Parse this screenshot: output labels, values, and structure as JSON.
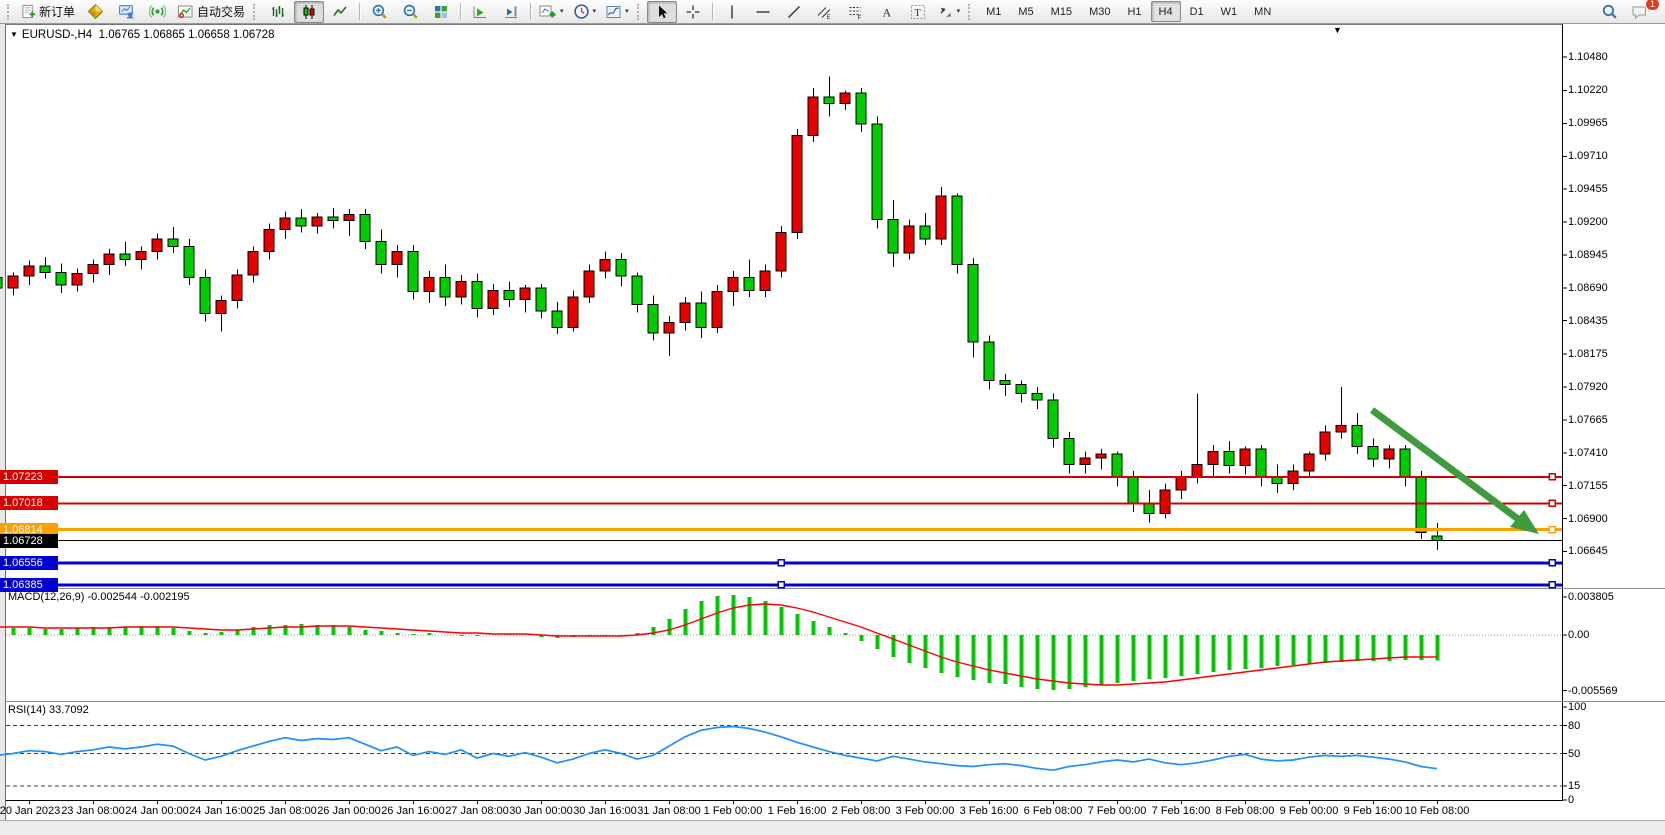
{
  "toolbar": {
    "new_order_label": "新订单",
    "auto_trading_label": "自动交易",
    "timeframes": [
      "M1",
      "M5",
      "M15",
      "M30",
      "H1",
      "H4",
      "D1",
      "W1",
      "MN"
    ],
    "active_timeframe": "H4",
    "notification_count": "1"
  },
  "icons": {
    "dropdown_caret": "▾",
    "symbol_dropdown": "▼",
    "chart_shift_marker": "▼"
  },
  "chart": {
    "symbol_title": "EURUSD-,H4",
    "ohlc_text": "1.06765 1.06865 1.06658 1.06728"
  },
  "chart_data": {
    "type": "candlestick",
    "symbol": "EURUSD",
    "timeframe": "H4",
    "candle_up_color": "#e60000",
    "candle_down_color": "#00cc00",
    "wick_color": "#000000",
    "arrow_color": "#3f9b3f",
    "price_axis_ticks": [
      "1.10480",
      "1.10220",
      "1.09965",
      "1.09710",
      "1.09455",
      "1.09200",
      "1.08945",
      "1.08690",
      "1.08435",
      "1.08175",
      "1.07920",
      "1.07665",
      "1.07410",
      "1.07155",
      "1.06900",
      "1.06645"
    ],
    "levels": [
      {
        "price": 1.07223,
        "label": "1.07223",
        "color": "#d40000",
        "width": 2,
        "left_handle": false
      },
      {
        "price": 1.07018,
        "label": "1.07018",
        "color": "#d40000",
        "width": 2,
        "left_handle": false
      },
      {
        "price": 1.06814,
        "label": "1.06814",
        "color": "#ffa000",
        "width": 3,
        "left_handle": false
      },
      {
        "price": 1.06556,
        "label": "1.06556",
        "color": "#0000d0",
        "width": 3,
        "left_handle": true
      },
      {
        "price": 1.06385,
        "label": "1.06385",
        "color": "#0000d0",
        "width": 3,
        "left_handle": true
      }
    ],
    "current_price": {
      "price": 1.06728,
      "label": "1.06728",
      "color": "#000000"
    },
    "time_labels": [
      "20 Jan 2023",
      "23 Jan 08:00",
      "24 Jan 00:00",
      "24 Jan 16:00",
      "25 Jan 08:00",
      "26 Jan 00:00",
      "26 Jan 16:00",
      "27 Jan 08:00",
      "30 Jan 00:00",
      "30 Jan 16:00",
      "31 Jan 08:00",
      "1 Feb 00:00",
      "1 Feb 16:00",
      "2 Feb 08:00",
      "3 Feb 00:00",
      "3 Feb 16:00",
      "6 Feb 08:00",
      "7 Feb 00:00",
      "7 Feb 16:00",
      "8 Feb 08:00",
      "9 Feb 00:00",
      "9 Feb 16:00",
      "10 Feb 08:00"
    ],
    "time_label_first_bar": 2,
    "time_label_bar_step": 4,
    "candles": [
      [
        1.0877,
        1.0883,
        1.0861,
        1.0869
      ],
      [
        1.0869,
        1.0881,
        1.0863,
        1.0878
      ],
      [
        1.0878,
        1.089,
        1.0871,
        1.0886
      ],
      [
        1.0886,
        1.0893,
        1.0876,
        1.0881
      ],
      [
        1.0881,
        1.0888,
        1.0865,
        1.0871
      ],
      [
        1.0871,
        1.0884,
        1.0866,
        1.088
      ],
      [
        1.088,
        1.0891,
        1.0873,
        1.0887
      ],
      [
        1.0887,
        1.0899,
        1.0879,
        1.0895
      ],
      [
        1.0895,
        1.0905,
        1.0886,
        1.0891
      ],
      [
        1.0891,
        1.0901,
        1.0883,
        1.0897
      ],
      [
        1.0897,
        1.0911,
        1.0891,
        1.0907
      ],
      [
        1.0907,
        1.0916,
        1.0896,
        1.0901
      ],
      [
        1.0901,
        1.0907,
        1.0871,
        1.0877
      ],
      [
        1.0877,
        1.0883,
        1.0843,
        1.0849
      ],
      [
        1.0849,
        1.0863,
        1.0835,
        1.0859
      ],
      [
        1.0859,
        1.0883,
        1.0853,
        1.0879
      ],
      [
        1.0879,
        1.0901,
        1.0873,
        1.0897
      ],
      [
        1.0897,
        1.0919,
        1.0891,
        1.0914
      ],
      [
        1.0914,
        1.0928,
        1.0907,
        1.0923
      ],
      [
        1.0923,
        1.093,
        1.0912,
        1.0917
      ],
      [
        1.0917,
        1.0927,
        1.0911,
        1.0924
      ],
      [
        1.0924,
        1.0931,
        1.0915,
        1.0921
      ],
      [
        1.0921,
        1.093,
        1.0909,
        1.0926
      ],
      [
        1.0926,
        1.093,
        1.0899,
        1.0905
      ],
      [
        1.0905,
        1.0914,
        1.088,
        1.0887
      ],
      [
        1.0887,
        1.0902,
        1.0877,
        1.0897
      ],
      [
        1.0897,
        1.0902,
        1.086,
        1.0866
      ],
      [
        1.0866,
        1.0882,
        1.0857,
        1.0877
      ],
      [
        1.0877,
        1.0887,
        1.0855,
        1.0862
      ],
      [
        1.0862,
        1.0879,
        1.0856,
        1.0874
      ],
      [
        1.0874,
        1.088,
        1.0846,
        1.0853
      ],
      [
        1.0853,
        1.0872,
        1.0848,
        1.0867
      ],
      [
        1.0867,
        1.0874,
        1.0854,
        1.086
      ],
      [
        1.086,
        1.0871,
        1.085,
        1.0869
      ],
      [
        1.0869,
        1.0872,
        1.0845,
        1.0851
      ],
      [
        1.0851,
        1.0858,
        1.0833,
        1.0838
      ],
      [
        1.0838,
        1.0867,
        1.0835,
        1.0862
      ],
      [
        1.0862,
        1.0887,
        1.0857,
        1.0882
      ],
      [
        1.0882,
        1.0897,
        1.0876,
        1.0891
      ],
      [
        1.0891,
        1.0896,
        1.087,
        1.0878
      ],
      [
        1.0878,
        1.0881,
        1.085,
        1.0856
      ],
      [
        1.0856,
        1.0863,
        1.0828,
        1.0834
      ],
      [
        1.0834,
        1.0847,
        1.0816,
        1.0842
      ],
      [
        1.0842,
        1.0862,
        1.0836,
        1.0857
      ],
      [
        1.0857,
        1.0866,
        1.083,
        1.0838
      ],
      [
        1.0838,
        1.0871,
        1.0834,
        1.0866
      ],
      [
        1.0866,
        1.0882,
        1.0855,
        1.0877
      ],
      [
        1.0877,
        1.0891,
        1.0862,
        1.0867
      ],
      [
        1.0867,
        1.0887,
        1.0862,
        1.0882
      ],
      [
        1.0882,
        1.0917,
        1.0877,
        1.0912
      ],
      [
        1.0912,
        1.0992,
        1.0907,
        1.0987
      ],
      [
        1.0987,
        1.1024,
        1.0982,
        1.1017
      ],
      [
        1.1017,
        1.1033,
        1.1002,
        1.1012
      ],
      [
        1.1012,
        1.1022,
        1.1007,
        1.102
      ],
      [
        1.102,
        1.1024,
        1.099,
        1.0996
      ],
      [
        1.0996,
        1.1002,
        1.0915,
        1.0922
      ],
      [
        1.0922,
        1.0937,
        1.0885,
        1.0896
      ],
      [
        1.0896,
        1.0922,
        1.0891,
        1.0917
      ],
      [
        1.0917,
        1.0927,
        1.0902,
        1.0907
      ],
      [
        1.0907,
        1.0947,
        1.0902,
        1.094
      ],
      [
        1.094,
        1.0942,
        1.088,
        1.0887
      ],
      [
        1.0887,
        1.0892,
        1.0815,
        1.0827
      ],
      [
        1.0827,
        1.0832,
        1.079,
        1.0797
      ],
      [
        1.0797,
        1.0802,
        1.0785,
        1.0794
      ],
      [
        1.0794,
        1.0797,
        1.078,
        1.0787
      ],
      [
        1.0787,
        1.0792,
        1.0775,
        1.0782
      ],
      [
        1.0782,
        1.0787,
        1.0745,
        1.0752
      ],
      [
        1.0752,
        1.0757,
        1.0725,
        1.0732
      ],
      [
        1.0732,
        1.0742,
        1.0725,
        1.0737
      ],
      [
        1.0737,
        1.0744,
        1.0728,
        1.074
      ],
      [
        1.074,
        1.0742,
        1.0715,
        1.0722
      ],
      [
        1.0722,
        1.0727,
        1.0695,
        1.0702
      ],
      [
        1.0702,
        1.0712,
        1.0687,
        1.0694
      ],
      [
        1.0694,
        1.0717,
        1.069,
        1.0712
      ],
      [
        1.0712,
        1.0727,
        1.0705,
        1.0722
      ],
      [
        1.0722,
        1.0787,
        1.0717,
        1.0732
      ],
      [
        1.0732,
        1.0747,
        1.0722,
        1.0742
      ],
      [
        1.0742,
        1.075,
        1.0725,
        1.0731
      ],
      [
        1.0731,
        1.0746,
        1.0724,
        1.0744
      ],
      [
        1.0744,
        1.0747,
        1.0715,
        1.0722
      ],
      [
        1.0722,
        1.0732,
        1.071,
        1.0717
      ],
      [
        1.0717,
        1.0732,
        1.0712,
        1.0727
      ],
      [
        1.0727,
        1.0742,
        1.0722,
        1.074
      ],
      [
        1.074,
        1.0762,
        1.0735,
        1.0757
      ],
      [
        1.0757,
        1.0792,
        1.0752,
        1.0762
      ],
      [
        1.0762,
        1.0772,
        1.074,
        1.0746
      ],
      [
        1.0746,
        1.0752,
        1.073,
        1.0736
      ],
      [
        1.0736,
        1.0747,
        1.0729,
        1.0744
      ],
      [
        1.0744,
        1.0747,
        1.0715,
        1.0722
      ],
      [
        1.0722,
        1.0727,
        1.0674,
        1.0679
      ],
      [
        1.06765,
        1.06865,
        1.06658,
        1.06728
      ]
    ],
    "macd": {
      "label": "MACD(12,26,9) -0.002544 -0.002195",
      "hist_color": "#00c800",
      "signal_color": "#ff0000",
      "ticks": [
        {
          "v": 0.003805,
          "label": "0.003805"
        },
        {
          "v": 0,
          "label": "0.00"
        },
        {
          "v": -0.005569,
          "label": "-0.005569"
        }
      ],
      "hist": [
        0.0006,
        0.0007,
        0.0007,
        0.0006,
        0.0006,
        0.0007,
        0.0008,
        0.0008,
        0.0008,
        0.0009,
        0.0009,
        0.0007,
        0.0004,
        0.0002,
        0.0003,
        0.0005,
        0.0008,
        0.001,
        0.001,
        0.0011,
        0.001,
        0.001,
        0.0008,
        0.0005,
        0.0004,
        0.0002,
        0.0001,
        0.0002,
        0.0,
        -0.0001,
        -0.0001,
        0.0,
        0.0001,
        0.0,
        -0.0002,
        -0.0003,
        -0.0002,
        -0.0001,
        -0.0001,
        -0.0001,
        0.0002,
        0.0008,
        0.0016,
        0.0026,
        0.0034,
        0.0039,
        0.004,
        0.0038,
        0.0034,
        0.0028,
        0.0021,
        0.0014,
        0.0008,
        0.0002,
        -0.0006,
        -0.0014,
        -0.0022,
        -0.0028,
        -0.0033,
        -0.0038,
        -0.0042,
        -0.0045,
        -0.0048,
        -0.0049,
        -0.0052,
        -0.0054,
        -0.0055,
        -0.0054,
        -0.0052,
        -0.005,
        -0.0048,
        -0.0046,
        -0.0044,
        -0.0043,
        -0.0041,
        -0.0039,
        -0.0037,
        -0.0035,
        -0.0034,
        -0.0033,
        -0.0031,
        -0.003,
        -0.0029,
        -0.0028,
        -0.0027,
        -0.0026,
        -0.0026,
        -0.0026,
        -0.0025,
        -0.0025,
        -0.002544
      ],
      "signal": [
        0.0008,
        0.0008,
        0.0008,
        0.0007,
        0.0007,
        0.0007,
        0.0007,
        0.0007,
        0.0008,
        0.0008,
        0.0008,
        0.0008,
        0.0007,
        0.0006,
        0.0005,
        0.0005,
        0.0006,
        0.0007,
        0.0008,
        0.0008,
        0.0009,
        0.0009,
        0.0009,
        0.0008,
        0.0007,
        0.0006,
        0.0005,
        0.0004,
        0.0003,
        0.0002,
        0.0002,
        0.0001,
        0.0001,
        0.0001,
        0.0,
        -0.0001,
        -0.0001,
        -0.0001,
        -0.0001,
        -0.0001,
        0.0,
        0.0002,
        0.0005,
        0.001,
        0.0016,
        0.0022,
        0.0027,
        0.003,
        0.0031,
        0.003,
        0.0027,
        0.0023,
        0.0018,
        0.0013,
        0.0008,
        0.0002,
        -0.0004,
        -0.001,
        -0.0016,
        -0.0022,
        -0.0027,
        -0.0031,
        -0.0035,
        -0.0038,
        -0.0041,
        -0.0044,
        -0.0046,
        -0.0048,
        -0.0049,
        -0.005,
        -0.005,
        -0.0049,
        -0.0048,
        -0.0047,
        -0.0045,
        -0.0043,
        -0.0041,
        -0.0039,
        -0.0037,
        -0.0035,
        -0.0033,
        -0.0031,
        -0.0029,
        -0.0027,
        -0.0026,
        -0.0025,
        -0.0024,
        -0.0023,
        -0.0022,
        -0.0022,
        -0.002195
      ]
    },
    "rsi": {
      "label": "RSI(14) 33.7092",
      "color": "#1e90ff",
      "ticks": [
        {
          "v": 100,
          "label": "100",
          "dashed": false
        },
        {
          "v": 80,
          "label": "80",
          "dashed": true
        },
        {
          "v": 50,
          "label": "50",
          "dashed": true
        },
        {
          "v": 15,
          "label": "15",
          "dashed": true
        },
        {
          "v": 0,
          "label": "0",
          "dashed": false
        }
      ],
      "series": [
        48,
        50,
        53,
        52,
        49,
        52,
        54,
        57,
        55,
        57,
        60,
        58,
        50,
        43,
        47,
        53,
        58,
        63,
        67,
        64,
        66,
        65,
        67,
        60,
        53,
        57,
        48,
        52,
        49,
        54,
        45,
        50,
        47,
        51,
        46,
        40,
        44,
        50,
        54,
        50,
        44,
        48,
        58,
        68,
        75,
        78,
        79,
        77,
        73,
        68,
        62,
        57,
        52,
        48,
        45,
        42,
        47,
        44,
        41,
        39,
        37,
        36,
        38,
        39,
        37,
        34,
        32,
        36,
        38,
        41,
        43,
        41,
        44,
        40,
        38,
        40,
        43,
        47,
        49,
        44,
        42,
        43,
        46,
        48,
        47,
        48,
        46,
        44,
        41,
        36,
        33.7
      ]
    }
  }
}
